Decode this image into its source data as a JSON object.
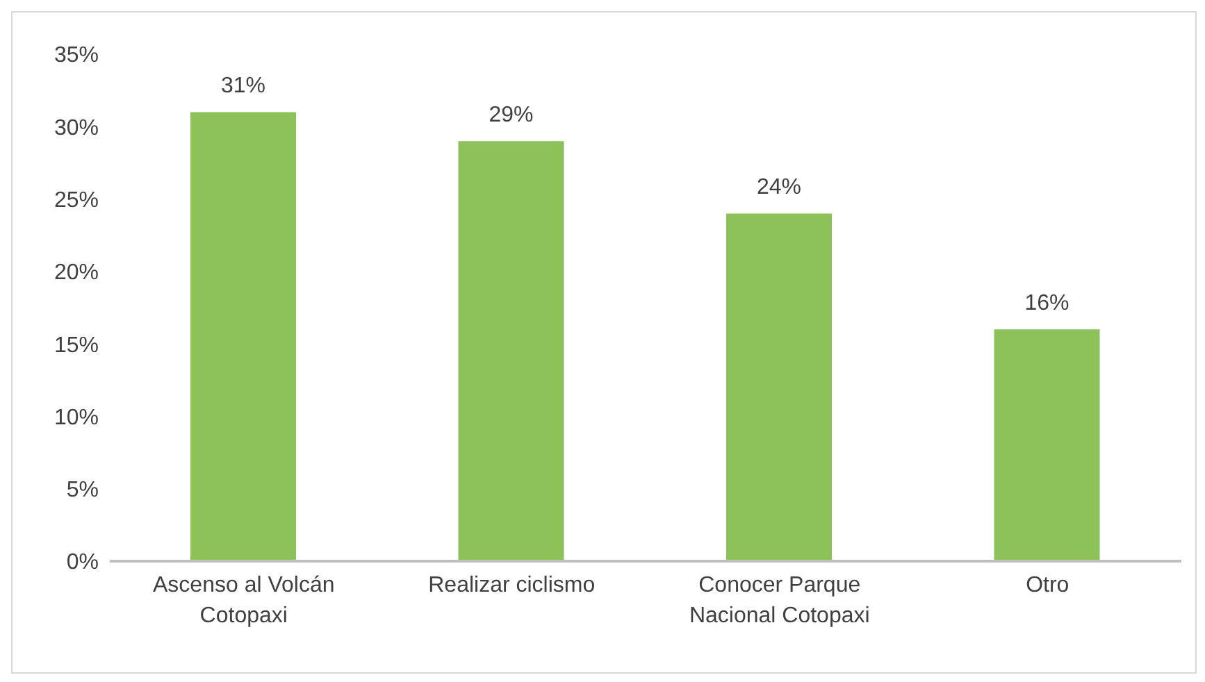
{
  "chart_data": {
    "type": "bar",
    "categories": [
      "Ascenso al Volcán Cotopaxi",
      "Realizar ciclismo",
      "Conocer Parque Nacional Cotopaxi",
      "Otro"
    ],
    "values": [
      31,
      29,
      24,
      16
    ],
    "color": "#8dc25a",
    "value_labels": [
      "31%",
      "29%",
      "24%",
      "16%"
    ],
    "ylim": [
      0,
      35
    ],
    "yticks": [
      {
        "value": 0,
        "label": "0%"
      },
      {
        "value": 5,
        "label": "5%"
      },
      {
        "value": 10,
        "label": "10%"
      },
      {
        "value": 15,
        "label": "15%"
      },
      {
        "value": 20,
        "label": "20%"
      },
      {
        "value": 25,
        "label": "25%"
      },
      {
        "value": 30,
        "label": "30%"
      },
      {
        "value": 35,
        "label": "35%"
      }
    ],
    "grid": false,
    "legend": false
  }
}
